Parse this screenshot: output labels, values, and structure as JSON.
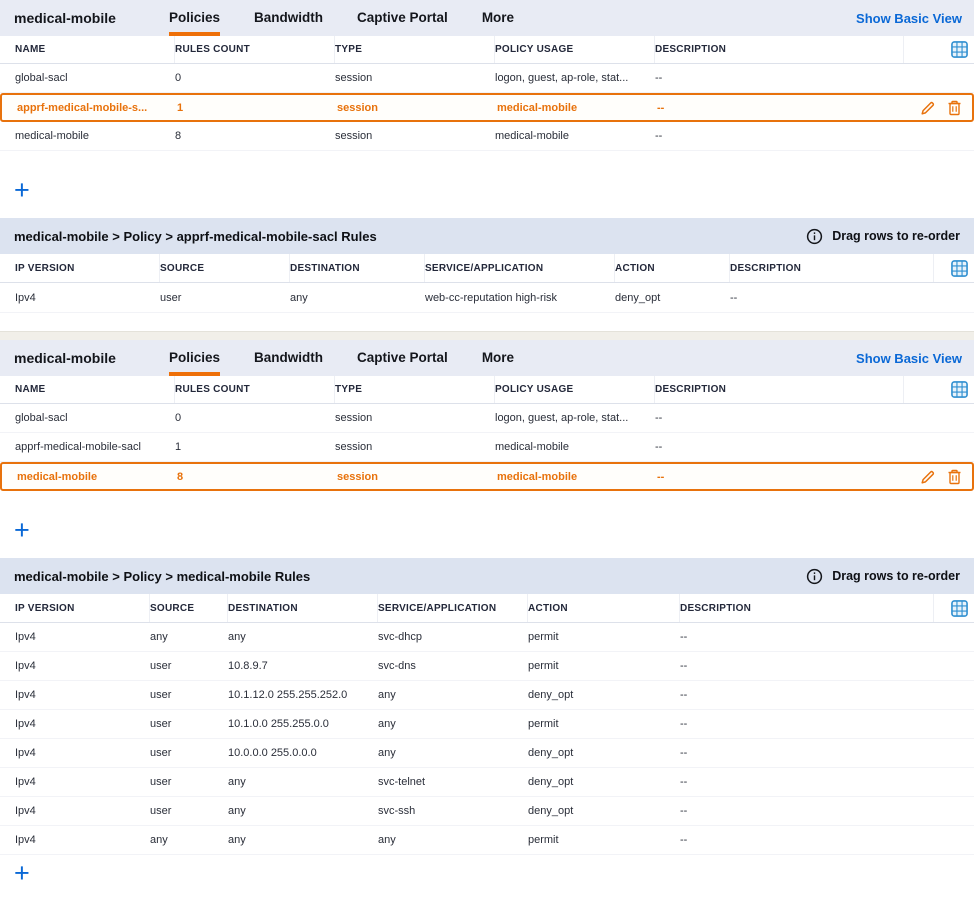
{
  "colors": {
    "accent_orange": "#e8720c",
    "link_blue": "#0a68d6",
    "tabbar_bg": "#e8ebf4",
    "rulesbar_bg": "#dce3f0",
    "grid_icon_blue": "#2f8fd0"
  },
  "panels": [
    {
      "title": "medical-mobile",
      "tabs": [
        "Policies",
        "Bandwidth",
        "Captive Portal",
        "More"
      ],
      "active_tab": "Policies",
      "view_link": "Show Basic View",
      "policy_table": {
        "columns": [
          "NAME",
          "RULES COUNT",
          "TYPE",
          "POLICY USAGE",
          "DESCRIPTION"
        ],
        "header_icon": "grid-icon",
        "rows": [
          {
            "cells": [
              "global-sacl",
              "0",
              "session",
              "logon, guest, ap-role, stat...",
              "--"
            ],
            "selected": false
          },
          {
            "cells": [
              "apprf-medical-mobile-s...",
              "1",
              "session",
              "medical-mobile",
              "--"
            ],
            "selected": true,
            "actions": [
              "edit",
              "delete"
            ]
          },
          {
            "cells": [
              "medical-mobile",
              "8",
              "session",
              "medical-mobile",
              "--"
            ],
            "selected": false
          }
        ],
        "add_label": "+"
      },
      "rules": {
        "breadcrumb": "medical-mobile > Policy > apprf-medical-mobile-sacl Rules",
        "info_icon": "info-icon",
        "hint": "Drag rows to re-order",
        "columns": [
          "IP VERSION",
          "SOURCE",
          "DESTINATION",
          "SERVICE/APPLICATION",
          "ACTION",
          "DESCRIPTION"
        ],
        "header_icon": "grid-icon",
        "rows": [
          {
            "cells": [
              "Ipv4",
              "user",
              "any",
              "web-cc-reputation high-risk",
              "deny_opt",
              "--"
            ]
          }
        ]
      }
    },
    {
      "title": "medical-mobile",
      "tabs": [
        "Policies",
        "Bandwidth",
        "Captive Portal",
        "More"
      ],
      "active_tab": "Policies",
      "view_link": "Show Basic View",
      "policy_table": {
        "columns": [
          "NAME",
          "RULES COUNT",
          "TYPE",
          "POLICY USAGE",
          "DESCRIPTION"
        ],
        "header_icon": "grid-icon",
        "rows": [
          {
            "cells": [
              "global-sacl",
              "0",
              "session",
              "logon, guest, ap-role, stat...",
              "--"
            ],
            "selected": false
          },
          {
            "cells": [
              "apprf-medical-mobile-sacl",
              "1",
              "session",
              "medical-mobile",
              "--"
            ],
            "selected": false
          },
          {
            "cells": [
              "medical-mobile",
              "8",
              "session",
              "medical-mobile",
              "--"
            ],
            "selected": true,
            "actions": [
              "edit",
              "delete"
            ]
          }
        ],
        "add_label": "+"
      },
      "rules": {
        "breadcrumb": "medical-mobile > Policy > medical-mobile Rules",
        "info_icon": "info-icon",
        "hint": "Drag rows to re-order",
        "columns": [
          "IP VERSION",
          "SOURCE",
          "DESTINATION",
          "SERVICE/APPLICATION",
          "ACTION",
          "DESCRIPTION"
        ],
        "header_icon": "grid-icon",
        "rows": [
          {
            "cells": [
              "Ipv4",
              "any",
              "any",
              "svc-dhcp",
              "permit",
              "--"
            ]
          },
          {
            "cells": [
              "Ipv4",
              "user",
              "10.8.9.7",
              "svc-dns",
              "permit",
              "--"
            ]
          },
          {
            "cells": [
              "Ipv4",
              "user",
              "10.1.12.0 255.255.252.0",
              "any",
              "deny_opt",
              "--"
            ]
          },
          {
            "cells": [
              "Ipv4",
              "user",
              "10.1.0.0 255.255.0.0",
              "any",
              "permit",
              "--"
            ]
          },
          {
            "cells": [
              "Ipv4",
              "user",
              "10.0.0.0 255.0.0.0",
              "any",
              "deny_opt",
              "--"
            ]
          },
          {
            "cells": [
              "Ipv4",
              "user",
              "any",
              "svc-telnet",
              "deny_opt",
              "--"
            ]
          },
          {
            "cells": [
              "Ipv4",
              "user",
              "any",
              "svc-ssh",
              "deny_opt",
              "--"
            ]
          },
          {
            "cells": [
              "Ipv4",
              "any",
              "any",
              "any",
              "permit",
              "--"
            ]
          }
        ],
        "add_label": "+"
      }
    }
  ]
}
